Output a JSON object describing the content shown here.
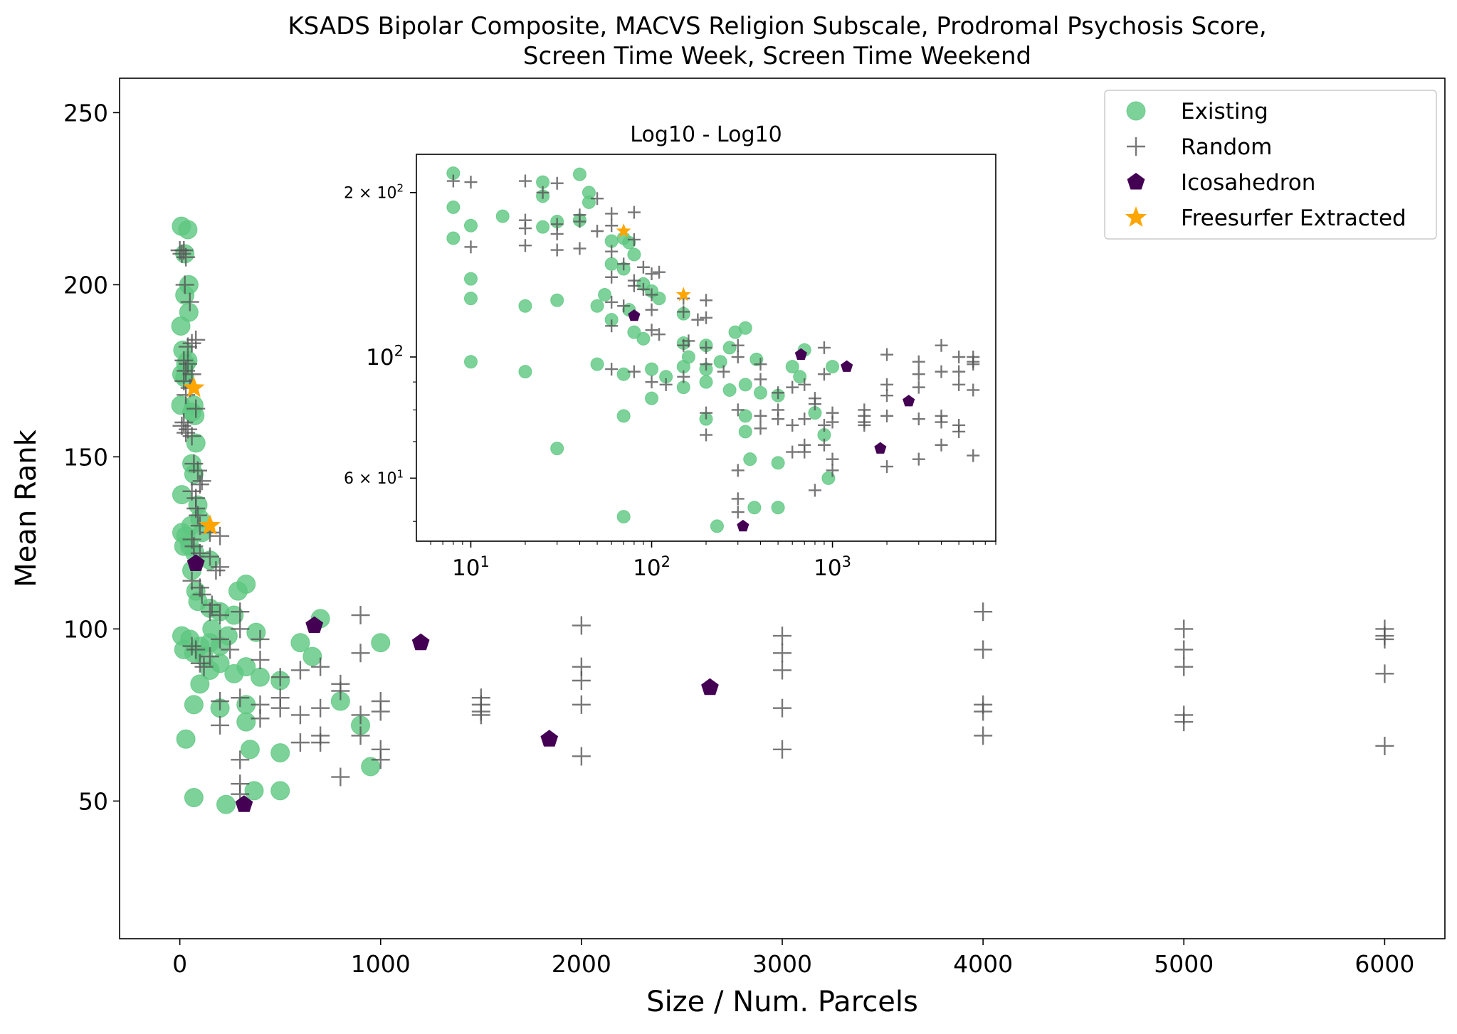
{
  "chart_data": [
    {
      "type": "scatter",
      "title_lines": [
        "KSADS Bipolar Composite, MACVS Religion Subscale, Prodromal Psychosis Score,",
        "Screen Time Week, Screen Time Weekend"
      ],
      "xlabel": "Size / Num. Parcels",
      "ylabel": "Mean Rank",
      "xlim": [
        -300,
        6300
      ],
      "ylim": [
        10,
        260
      ],
      "x_ticks": [
        0,
        1000,
        2000,
        3000,
        4000,
        5000,
        6000
      ],
      "y_ticks": [
        50,
        100,
        150,
        200,
        250
      ],
      "grid": false,
      "legend_position": "top-right",
      "legend": [
        {
          "label": "Existing",
          "marker": "circle",
          "color": "#5cc77f"
        },
        {
          "label": "Random",
          "marker": "plus",
          "color": "#555555"
        },
        {
          "label": "Icosahedron",
          "marker": "pentagon",
          "color": "#440154"
        },
        {
          "label": "Freesurfer Extracted",
          "marker": "star",
          "color": "#ffa500"
        }
      ],
      "series": [
        {
          "name": "Existing",
          "marker": "circle",
          "color": "#5cc77f",
          "points": [
            [
              8,
              217
            ],
            [
              40,
              216
            ],
            [
              25,
              209
            ],
            [
              45,
              200
            ],
            [
              25,
              197
            ],
            [
              45,
              192
            ],
            [
              5,
              188
            ],
            [
              15,
              181
            ],
            [
              30,
              177
            ],
            [
              40,
              178
            ],
            [
              10,
              174
            ],
            [
              25,
              173
            ],
            [
              5,
              165
            ],
            [
              70,
              165
            ],
            [
              60,
              163
            ],
            [
              75,
              162
            ],
            [
              80,
              154
            ],
            [
              60,
              148
            ],
            [
              70,
              145
            ],
            [
              10,
              139
            ],
            [
              90,
              136
            ],
            [
              100,
              132
            ],
            [
              55,
              130
            ],
            [
              10,
              128
            ],
            [
              110,
              128
            ],
            [
              30,
              127
            ],
            [
              20,
              124
            ],
            [
              50,
              124
            ],
            [
              75,
              122
            ],
            [
              60,
              117
            ],
            [
              150,
              120
            ],
            [
              80,
              111
            ],
            [
              90,
              108
            ],
            [
              150,
              106
            ],
            [
              200,
              105
            ],
            [
              270,
              104
            ],
            [
              290,
              111
            ],
            [
              330,
              113
            ],
            [
              380,
              99
            ],
            [
              10,
              98
            ],
            [
              50,
              97
            ],
            [
              20,
              94
            ],
            [
              70,
              93
            ],
            [
              100,
              95
            ],
            [
              150,
              96
            ],
            [
              120,
              92
            ],
            [
              200,
              95
            ],
            [
              160,
              100
            ],
            [
              240,
              98
            ],
            [
              600,
              96
            ],
            [
              700,
              103
            ],
            [
              1000,
              96
            ],
            [
              100,
              84
            ],
            [
              150,
              88
            ],
            [
              200,
              90
            ],
            [
              270,
              87
            ],
            [
              330,
              89
            ],
            [
              400,
              86
            ],
            [
              500,
              85
            ],
            [
              660,
              92
            ],
            [
              30,
              68
            ],
            [
              70,
              78
            ],
            [
              200,
              77
            ],
            [
              330,
              78
            ],
            [
              330,
              73
            ],
            [
              350,
              65
            ],
            [
              500,
              64
            ],
            [
              800,
              79
            ],
            [
              900,
              72
            ],
            [
              950,
              60
            ],
            [
              70,
              51
            ],
            [
              230,
              49
            ],
            [
              370,
              53
            ],
            [
              500,
              53
            ]
          ]
        },
        {
          "name": "Random",
          "marker": "plus",
          "color": "#555555",
          "points": [
            [
              0,
              210
            ],
            [
              10,
              209
            ],
            [
              20,
              210
            ],
            [
              30,
              208
            ],
            [
              25,
              200
            ],
            [
              50,
              195
            ],
            [
              40,
              182
            ],
            [
              60,
              183
            ],
            [
              80,
              184
            ],
            [
              20,
              178
            ],
            [
              30,
              175
            ],
            [
              40,
              177
            ],
            [
              60,
              174
            ],
            [
              20,
              172
            ],
            [
              30,
              168
            ],
            [
              50,
              170
            ],
            [
              80,
              164
            ],
            [
              10,
              159
            ],
            [
              30,
              157
            ],
            [
              20,
              160
            ],
            [
              40,
              158
            ],
            [
              60,
              156
            ],
            [
              70,
              148
            ],
            [
              90,
              146
            ],
            [
              100,
              142
            ],
            [
              110,
              143
            ],
            [
              60,
              140
            ],
            [
              80,
              138
            ],
            [
              80,
              135
            ],
            [
              90,
              133
            ],
            [
              100,
              130
            ],
            [
              150,
              128
            ],
            [
              200,
              127
            ],
            [
              60,
              126
            ],
            [
              70,
              124
            ],
            [
              100,
              122
            ],
            [
              150,
              121
            ],
            [
              180,
              117
            ],
            [
              200,
              118
            ],
            [
              60,
              114
            ],
            [
              100,
              112
            ],
            [
              110,
              110
            ],
            [
              160,
              107
            ],
            [
              150,
              105
            ],
            [
              200,
              104
            ],
            [
              300,
              105
            ],
            [
              300,
              100
            ],
            [
              400,
              97
            ],
            [
              60,
              95
            ],
            [
              80,
              94
            ],
            [
              100,
              90
            ],
            [
              120,
              89
            ],
            [
              150,
              92
            ],
            [
              200,
              97
            ],
            [
              250,
              94
            ],
            [
              400,
              91
            ],
            [
              500,
              86
            ],
            [
              600,
              88
            ],
            [
              700,
              89
            ],
            [
              800,
              84
            ],
            [
              800,
              82
            ],
            [
              900,
              75
            ],
            [
              900,
              69
            ],
            [
              1000,
              79
            ],
            [
              1000,
              76
            ],
            [
              900,
              93
            ],
            [
              900,
              104
            ],
            [
              1000,
              65
            ],
            [
              1000,
              62
            ],
            [
              800,
              57
            ],
            [
              200,
              72
            ],
            [
              200,
              79
            ],
            [
              300,
              80
            ],
            [
              400,
              78
            ],
            [
              400,
              74
            ],
            [
              500,
              80
            ],
            [
              500,
              77
            ],
            [
              600,
              75
            ],
            [
              700,
              77
            ],
            [
              600,
              67
            ],
            [
              700,
              69
            ],
            [
              700,
              67
            ],
            [
              300,
              62
            ],
            [
              300,
              55
            ],
            [
              300,
              52
            ],
            [
              1500,
              80
            ],
            [
              1500,
              78
            ],
            [
              1500,
              76
            ],
            [
              1500,
              75
            ],
            [
              2000,
              101
            ],
            [
              2000,
              89
            ],
            [
              2000,
              85
            ],
            [
              2000,
              78
            ],
            [
              2000,
              63
            ],
            [
              3000,
              98
            ],
            [
              3000,
              93
            ],
            [
              3000,
              88
            ],
            [
              3000,
              77
            ],
            [
              3000,
              65
            ],
            [
              4000,
              105
            ],
            [
              4000,
              94
            ],
            [
              4000,
              78
            ],
            [
              4000,
              76
            ],
            [
              4000,
              69
            ],
            [
              5000,
              100
            ],
            [
              5000,
              94
            ],
            [
              5000,
              89
            ],
            [
              5000,
              75
            ],
            [
              5000,
              73
            ],
            [
              6000,
              100
            ],
            [
              6000,
              98
            ],
            [
              6000,
              97
            ],
            [
              6000,
              87
            ],
            [
              6000,
              66
            ]
          ]
        },
        {
          "name": "Icosahedron",
          "marker": "pentagon",
          "color": "#440154",
          "points": [
            [
              80,
              119
            ],
            [
              320,
              49
            ],
            [
              670,
              101
            ],
            [
              1200,
              96
            ],
            [
              1840,
              68
            ],
            [
              2640,
              83
            ]
          ]
        },
        {
          "name": "Freesurfer Extracted",
          "marker": "star",
          "color": "#ffa500",
          "points": [
            [
              70,
              170
            ],
            [
              150,
              130
            ]
          ]
        }
      ]
    },
    {
      "type": "scatter",
      "title": "Log10 - Log10",
      "xscale": "log",
      "yscale": "log",
      "xlim": [
        5,
        8000
      ],
      "ylim": [
        46,
        235
      ],
      "x_tick_labels": [
        "10^1",
        "10^2",
        "10^3"
      ],
      "y_tick_labels": [
        "2 × 10^2",
        "10^2",
        "6 × 10^1"
      ],
      "series_ref": "same data as main plot"
    }
  ]
}
